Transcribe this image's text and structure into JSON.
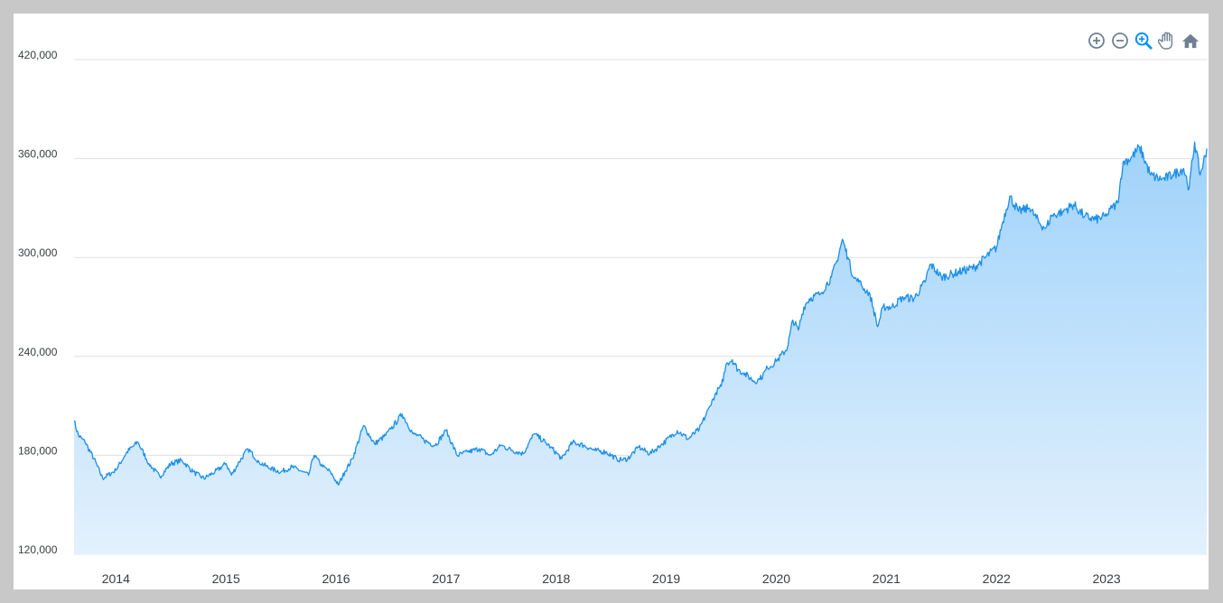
{
  "colors": {
    "line": "#1a8fe8",
    "fill_top": "#9fd2fa",
    "fill_bottom": "#e3f1fd",
    "icon": "#6e8192",
    "icon_active": "#008ffb"
  },
  "toolbar": {
    "icons": [
      "zoom-in-icon",
      "zoom-out-icon",
      "zoom-selection-icon",
      "pan-hand-icon",
      "reset-home-icon"
    ]
  },
  "chart_data": {
    "type": "area",
    "title": "",
    "xlabel": "",
    "ylabel": "",
    "xlim": [
      2013.62,
      2023.91
    ],
    "ylim": [
      120000,
      420000
    ],
    "yticks": [
      "420,000",
      "360,000",
      "300,000",
      "240,000",
      "180,000",
      "120,000"
    ],
    "xticks": [
      "2014",
      "2015",
      "2016",
      "2017",
      "2018",
      "2019",
      "2020",
      "2021",
      "2022",
      "2023"
    ],
    "grid": true,
    "legend": "none",
    "series": [
      {
        "x": [
          2013.62,
          2013.66,
          2013.72,
          2013.8,
          2013.88,
          2014.0,
          2014.1,
          2014.2,
          2014.3,
          2014.4,
          2014.5,
          2014.6,
          2014.7,
          2014.8,
          2014.9,
          2015.0,
          2015.05,
          2015.12,
          2015.2,
          2015.3,
          2015.4,
          2015.5,
          2015.6,
          2015.7,
          2015.75,
          2015.8,
          2015.88,
          2015.95,
          2016.02,
          2016.08,
          2016.15,
          2016.25,
          2016.35,
          2016.45,
          2016.5,
          2016.6,
          2016.7,
          2016.75,
          2016.8,
          2016.9,
          2017.0,
          2017.1,
          2017.2,
          2017.3,
          2017.4,
          2017.5,
          2017.6,
          2017.7,
          2017.8,
          2017.9,
          2017.95,
          2018.05,
          2018.15,
          2018.25,
          2018.35,
          2018.45,
          2018.55,
          2018.6,
          2018.65,
          2018.75,
          2018.85,
          2018.95,
          2019.1,
          2019.2,
          2019.3,
          2019.4,
          2019.45,
          2019.5,
          2019.55,
          2019.6,
          2019.65,
          2019.7,
          2019.8,
          2019.85,
          2019.92,
          2020.0,
          2020.1,
          2020.15,
          2020.2,
          2020.25,
          2020.3,
          2020.4,
          2020.5,
          2020.55,
          2020.6,
          2020.65,
          2020.7,
          2020.75,
          2020.8,
          2020.85,
          2020.92,
          2020.97,
          2021.05,
          2021.15,
          2021.25,
          2021.35,
          2021.4,
          2021.5,
          2021.6,
          2021.7,
          2021.8,
          2021.9,
          2022.0,
          2022.05,
          2022.12,
          2022.2,
          2022.3,
          2022.4,
          2022.45,
          2022.5,
          2022.6,
          2022.7,
          2022.8,
          2022.9,
          2023.0,
          2023.05,
          2023.1,
          2023.15,
          2023.22,
          2023.3,
          2023.4,
          2023.5,
          2023.6,
          2023.7,
          2023.75,
          2023.8,
          2023.85,
          2023.88,
          2023.91
        ],
        "values": [
          201000,
          192000,
          188000,
          178000,
          166000,
          171000,
          182000,
          188000,
          175000,
          167000,
          175000,
          177000,
          170000,
          166000,
          170000,
          175000,
          168000,
          176000,
          184000,
          176000,
          172000,
          170000,
          173000,
          170000,
          168000,
          180000,
          173000,
          170000,
          162000,
          170000,
          178000,
          198000,
          187000,
          192000,
          196000,
          205000,
          193000,
          192000,
          189000,
          186000,
          195000,
          180000,
          182000,
          184000,
          180000,
          186000,
          183000,
          181000,
          193000,
          188000,
          185000,
          178000,
          188000,
          186000,
          183000,
          182000,
          178000,
          177000,
          178000,
          185000,
          181000,
          186000,
          195000,
          190000,
          196000,
          210000,
          218000,
          222000,
          236000,
          238000,
          232000,
          230000,
          225000,
          226000,
          233000,
          237000,
          245000,
          262000,
          256000,
          270000,
          275000,
          278000,
          288000,
          298000,
          311000,
          300000,
          288000,
          285000,
          281000,
          278000,
          258000,
          270000,
          270000,
          276000,
          275000,
          285000,
          296000,
          288000,
          290000,
          292000,
          294000,
          300000,
          306000,
          320000,
          337000,
          328000,
          330000,
          320000,
          318000,
          325000,
          328000,
          332000,
          325000,
          323000,
          325000,
          330000,
          333000,
          358000,
          360000,
          367000,
          350000,
          347000,
          350000,
          354000,
          342000,
          370000,
          350000,
          358000,
          366000
        ]
      }
    ]
  }
}
